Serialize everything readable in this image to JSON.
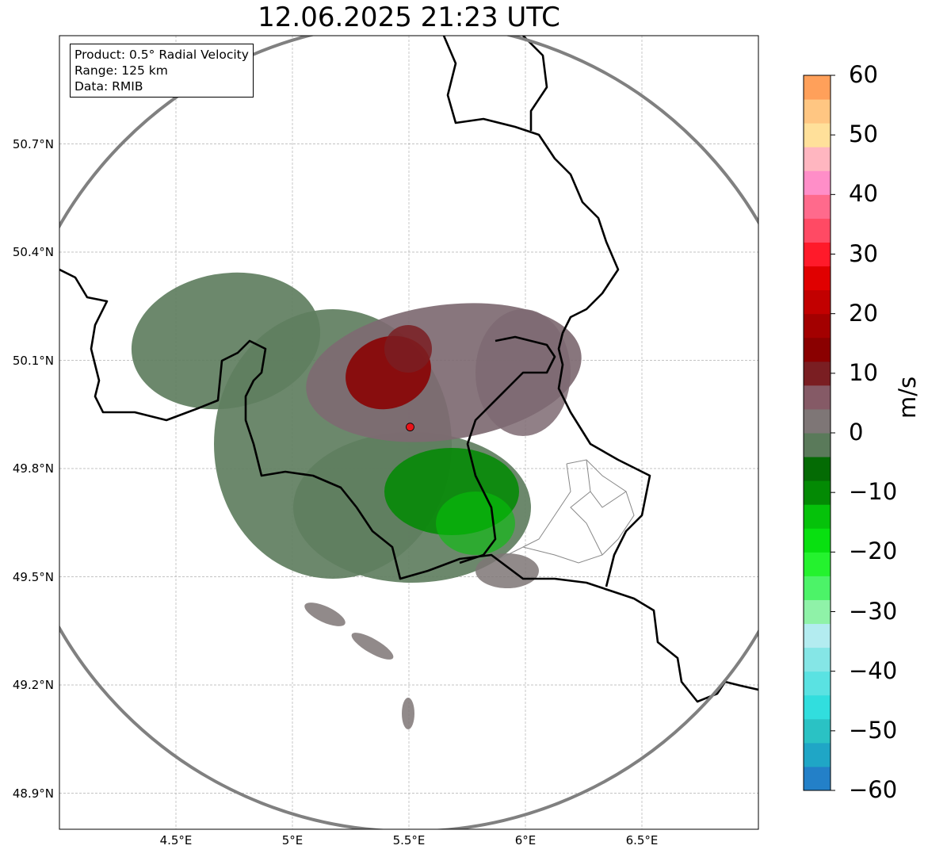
{
  "title": "12.06.2025 21:23 UTC",
  "info": {
    "product": "Product: 0.5° Radial Velocity",
    "range": "Range: 125 km",
    "data": "Data: RMIB"
  },
  "map": {
    "lon_range": [
      4.0,
      7.0
    ],
    "lat_range": [
      48.8,
      51.0
    ],
    "lat_ticks": [
      {
        "value": 50.7,
        "label": "50.7°N"
      },
      {
        "value": 50.4,
        "label": "50.4°N"
      },
      {
        "value": 50.1,
        "label": "50.1°N"
      },
      {
        "value": 49.8,
        "label": "49.8°N"
      },
      {
        "value": 49.5,
        "label": "49.5°N"
      },
      {
        "value": 49.2,
        "label": "49.2°N"
      },
      {
        "value": 48.9,
        "label": "48.9°N"
      }
    ],
    "lon_ticks": [
      {
        "value": 4.5,
        "label": "4.5°E"
      },
      {
        "value": 5.0,
        "label": "5°E"
      },
      {
        "value": 5.5,
        "label": "5.5°E"
      },
      {
        "value": 6.0,
        "label": "6°E"
      },
      {
        "value": 6.5,
        "label": "6.5°E"
      }
    ],
    "radar_site": {
      "lon": 5.505,
      "lat": 49.915
    },
    "range_ring_km": 125,
    "grid": true,
    "colors": {
      "border": "#000000",
      "range_ring": "#808080",
      "grid": "#b0b0b0",
      "admin": "#888888",
      "site": "#e8141a"
    }
  },
  "colorbar": {
    "unit": "m/s",
    "vmin": -60,
    "vmax": 60,
    "ticks": [
      {
        "value": 60,
        "label": "60"
      },
      {
        "value": 50,
        "label": "50"
      },
      {
        "value": 40,
        "label": "40"
      },
      {
        "value": 30,
        "label": "30"
      },
      {
        "value": 20,
        "label": "20"
      },
      {
        "value": 10,
        "label": "10"
      },
      {
        "value": 0,
        "label": "0"
      },
      {
        "value": -10,
        "label": "−10"
      },
      {
        "value": -20,
        "label": "−20"
      },
      {
        "value": -30,
        "label": "−30"
      },
      {
        "value": -40,
        "label": "−40"
      },
      {
        "value": -50,
        "label": "−50"
      },
      {
        "value": -60,
        "label": "−60"
      }
    ],
    "bands": [
      {
        "from": -60,
        "to": -56,
        "color": "#2380c8"
      },
      {
        "from": -56,
        "to": -52,
        "color": "#1fa6c6"
      },
      {
        "from": -52,
        "to": -48,
        "color": "#2ac2c4"
      },
      {
        "from": -48,
        "to": -44,
        "color": "#31dede"
      },
      {
        "from": -44,
        "to": -40,
        "color": "#5ae2e2"
      },
      {
        "from": -40,
        "to": -36,
        "color": "#85e6e6"
      },
      {
        "from": -36,
        "to": -32,
        "color": "#b3ecf0"
      },
      {
        "from": -32,
        "to": -28,
        "color": "#8ff2a8"
      },
      {
        "from": -28,
        "to": -24,
        "color": "#4cf368"
      },
      {
        "from": -24,
        "to": -20,
        "color": "#24f22e"
      },
      {
        "from": -20,
        "to": -16,
        "color": "#08e010"
      },
      {
        "from": -16,
        "to": -12,
        "color": "#05c20a"
      },
      {
        "from": -12,
        "to": -8,
        "color": "#038a04"
      },
      {
        "from": -8,
        "to": -4,
        "color": "#046b04"
      },
      {
        "from": -4,
        "to": 0,
        "color": "#5a7a5a"
      },
      {
        "from": 0,
        "to": 4,
        "color": "#7e7676"
      },
      {
        "from": 4,
        "to": 8,
        "color": "#855a66"
      },
      {
        "from": 8,
        "to": 12,
        "color": "#7a1e22"
      },
      {
        "from": 12,
        "to": 16,
        "color": "#8a0000"
      },
      {
        "from": 16,
        "to": 20,
        "color": "#a30000"
      },
      {
        "from": 20,
        "to": 24,
        "color": "#c20000"
      },
      {
        "from": 24,
        "to": 28,
        "color": "#e00000"
      },
      {
        "from": 28,
        "to": 32,
        "color": "#ff1a2a"
      },
      {
        "from": 32,
        "to": 36,
        "color": "#ff4a64"
      },
      {
        "from": 36,
        "to": 40,
        "color": "#ff6a8c"
      },
      {
        "from": 40,
        "to": 44,
        "color": "#ff8ec8"
      },
      {
        "from": 44,
        "to": 48,
        "color": "#ffb6c0"
      },
      {
        "from": 48,
        "to": 52,
        "color": "#ffe09a"
      },
      {
        "from": 52,
        "to": 56,
        "color": "#ffc682"
      },
      {
        "from": 56,
        "to": 60,
        "color": "#ffa05a"
      }
    ]
  }
}
